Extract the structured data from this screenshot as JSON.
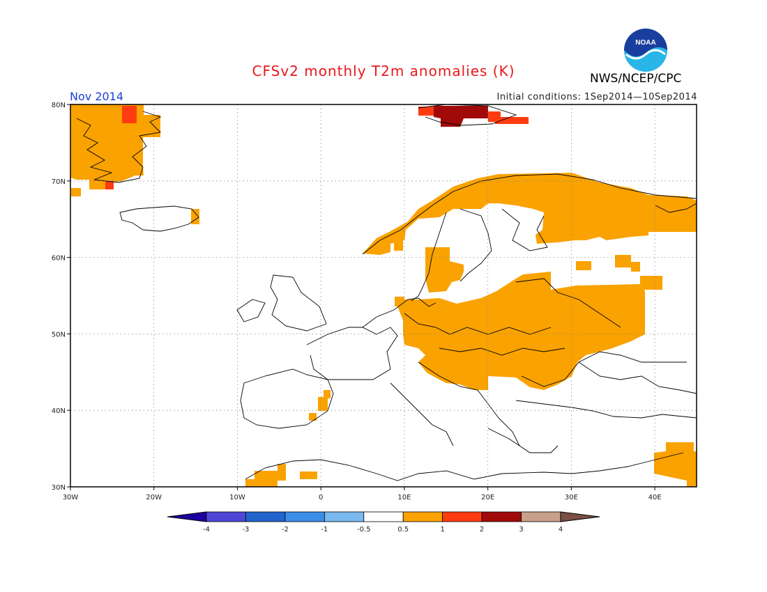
{
  "header": {
    "title": "CFSv2 monthly T2m anomalies (K)",
    "period": "Nov 2014",
    "initial_conditions": "Initial conditions: 1Sep2014—10Sep2014",
    "agency": "NWS/NCEP/CPC",
    "logo_text": "NOAA"
  },
  "map": {
    "lat_labels": [
      "80N",
      "70N",
      "60N",
      "50N",
      "40N",
      "30N"
    ],
    "lon_labels": [
      "30W",
      "20W",
      "10W",
      "0",
      "10E",
      "20E",
      "30E",
      "40E"
    ],
    "lon_range": [
      -30,
      45
    ],
    "lat_range": [
      30,
      80
    ],
    "grid": "dotted"
  },
  "colorbar": {
    "labels": [
      "-4",
      "-3",
      "-2",
      "-1",
      "-0.5",
      "0.5",
      "1",
      "2",
      "3",
      "4"
    ],
    "colors": [
      "#1e00a0",
      "#4e46d6",
      "#2164cc",
      "#3a8ee8",
      "#7ab8f0",
      "#ffffff",
      "#f9a200",
      "#ff3c10",
      "#a20a0a",
      "#c8a08a",
      "#7a5044"
    ]
  },
  "colors": {
    "orange": "#f9a200",
    "red": "#ff3c10",
    "dark_red": "#a20a0a"
  },
  "anomaly_regions": [
    {
      "name": "Greenland east",
      "level": "orange"
    },
    {
      "name": "Greenland east peak",
      "level": "red"
    },
    {
      "name": "Svalbard",
      "level": "dark_red"
    },
    {
      "name": "Scandinavia north",
      "level": "orange"
    },
    {
      "name": "Russia northwest",
      "level": "orange"
    },
    {
      "name": "Central and Eastern Europe",
      "level": "orange"
    },
    {
      "name": "Iberia east",
      "level": "orange"
    },
    {
      "name": "North Africa",
      "level": "orange"
    },
    {
      "name": "Middle East",
      "level": "orange"
    }
  ]
}
